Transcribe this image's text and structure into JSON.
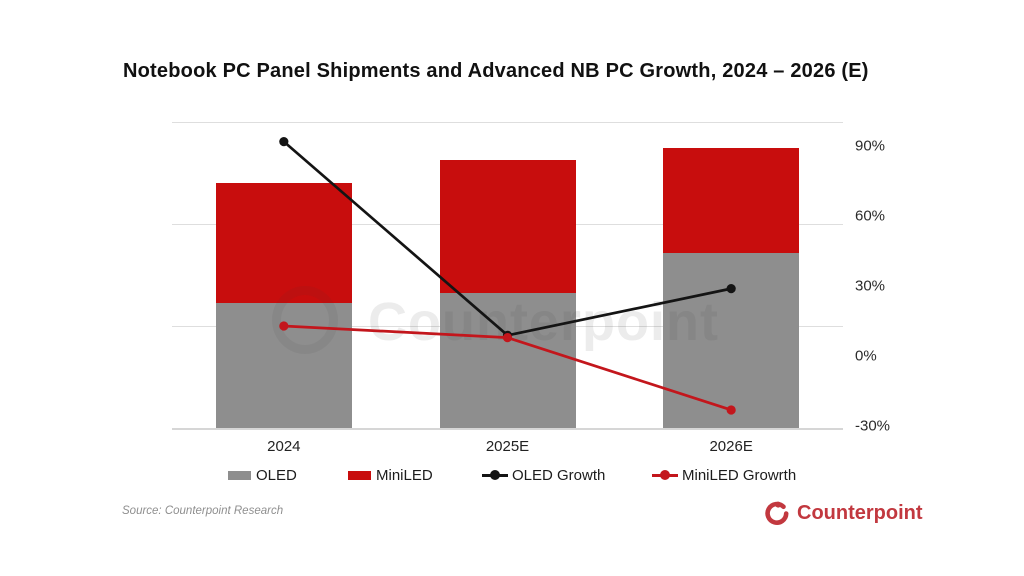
{
  "title": "Notebook PC Panel Shipments and Advanced NB PC Growth, 2024 – 2026 (E)",
  "source": "Source: Counterpoint Research",
  "logo": {
    "text": "Counterpoint",
    "color": "#C2383F"
  },
  "watermark": {
    "text": "Counterpoint"
  },
  "colors": {
    "oled_bar": "#8E8E8E",
    "miniled_bar": "#C80D0D",
    "oled_growth_line": "#141414",
    "miniled_growth_line": "#C3161C",
    "gridline": "#DEDEDE",
    "background": "#FFFFFF"
  },
  "chart_data": {
    "type": "bar",
    "subtype": "stacked-bars-with-lines-combo",
    "title": "Notebook PC Panel Shipments and Advanced NB PC Growth, 2024 – 2026 (E)",
    "categories": [
      "2024",
      "2025E",
      "2026E"
    ],
    "bar_series": [
      {
        "name": "OLED",
        "color": "#8E8E8E",
        "values": [
          40.8,
          44.1,
          57.1
        ]
      },
      {
        "name": "MiniLED",
        "color": "#C80D0D",
        "values": [
          39.3,
          43.4,
          34.4
        ]
      }
    ],
    "bar_value_unit": "percent of left-axis maximum (shipment axis is unlabeled in the image)",
    "line_series": [
      {
        "name": "OLED Growth",
        "color": "#141414",
        "values": [
          92,
          9,
          29
        ]
      },
      {
        "name": "MiniLED Growrth",
        "color": "#C3161C",
        "values": [
          13,
          8,
          -23
        ]
      }
    ],
    "line_value_unit": "%",
    "right_axis": {
      "ticks": [
        {
          "label": "90%",
          "value": 90
        },
        {
          "label": "60%",
          "value": 60
        },
        {
          "label": "30%",
          "value": 30
        },
        {
          "label": "0%",
          "value": 0
        },
        {
          "label": "-30%",
          "value": -30
        }
      ],
      "min": -31,
      "max": 101
    },
    "left_axis": {
      "labeled": false,
      "gridline_divisions": 3
    },
    "grid": "horizontal gridlines on",
    "legend_position": "bottom",
    "xlabel": "",
    "ylabel": ""
  }
}
